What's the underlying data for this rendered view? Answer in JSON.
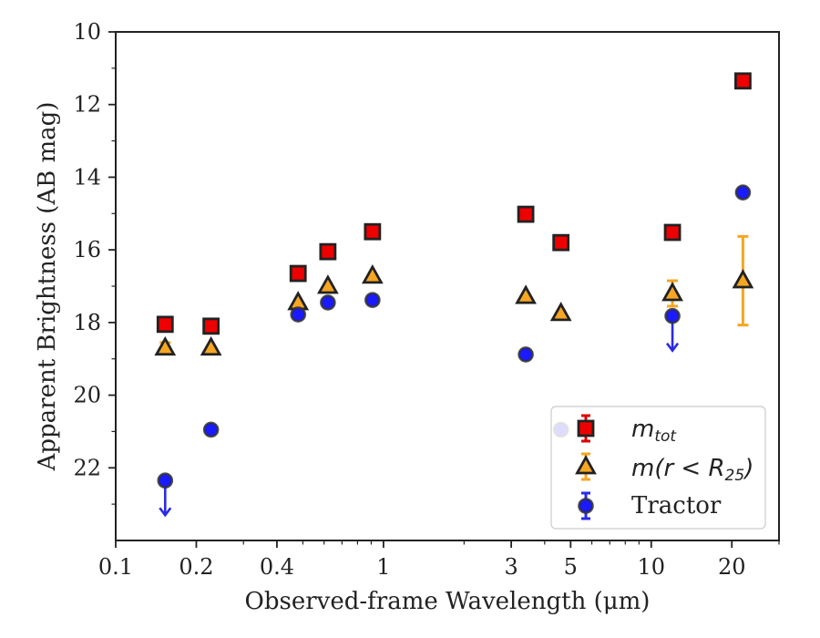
{
  "chart_data": {
    "type": "scatter",
    "xlabel": "Observed-frame Wavelength (μm)",
    "ylabel": "Apparent Brightness (AB mag)",
    "x_scale": "log",
    "xlim": [
      0.1,
      30
    ],
    "ylim": [
      24,
      10
    ],
    "y_inverted": true,
    "grid": false,
    "legend_position": "lower-right",
    "x_ticks": [
      {
        "value": 0.1,
        "label": "0.1"
      },
      {
        "value": 0.2,
        "label": "0.2"
      },
      {
        "value": 0.4,
        "label": "0.4"
      },
      {
        "value": 1,
        "label": "1"
      },
      {
        "value": 3,
        "label": "3"
      },
      {
        "value": 5,
        "label": "5"
      },
      {
        "value": 10,
        "label": "10"
      },
      {
        "value": 20,
        "label": "20"
      }
    ],
    "y_ticks": [
      {
        "value": 10,
        "label": "10"
      },
      {
        "value": 12,
        "label": "12"
      },
      {
        "value": 14,
        "label": "14"
      },
      {
        "value": 16,
        "label": "16"
      },
      {
        "value": 18,
        "label": "18"
      },
      {
        "value": 20,
        "label": "20"
      },
      {
        "value": 22,
        "label": "22"
      }
    ],
    "series": [
      {
        "name": "m_tot",
        "legend_main": "m",
        "legend_sub": "tot",
        "marker": "square",
        "fill": "#ee0000",
        "edge": "#222222",
        "errcolor": "#dd0000",
        "points": [
          {
            "x": 0.153,
            "y": 18.05
          },
          {
            "x": 0.227,
            "y": 18.1
          },
          {
            "x": 0.48,
            "y": 16.65
          },
          {
            "x": 0.62,
            "y": 16.05
          },
          {
            "x": 0.91,
            "y": 15.5
          },
          {
            "x": 3.4,
            "y": 15.02
          },
          {
            "x": 4.6,
            "y": 15.8
          },
          {
            "x": 12.0,
            "y": 15.52
          },
          {
            "x": 22.0,
            "y": 11.35
          }
        ]
      },
      {
        "name": "m(r < R_25)",
        "legend_main": "m(r < R",
        "legend_sub": "25",
        "legend_tail": ")",
        "marker": "triangle",
        "fill": "#f5a623",
        "edge": "#222222",
        "errcolor": "#f5a623",
        "points": [
          {
            "x": 0.153,
            "y": 18.7,
            "err": 0.15
          },
          {
            "x": 0.227,
            "y": 18.7
          },
          {
            "x": 0.48,
            "y": 17.45
          },
          {
            "x": 0.62,
            "y": 17.0
          },
          {
            "x": 0.91,
            "y": 16.72
          },
          {
            "x": 3.4,
            "y": 17.28
          },
          {
            "x": 4.6,
            "y": 17.75
          },
          {
            "x": 12.0,
            "y": 17.2,
            "err": 0.35
          },
          {
            "x": 22.0,
            "y": 16.85,
            "err": 1.22
          }
        ]
      },
      {
        "name": "Tractor",
        "marker": "circle",
        "fill": "#1a1aff",
        "edge": "#333333",
        "errcolor": "#2a2ae8",
        "points": [
          {
            "x": 0.153,
            "y": 22.35,
            "upper_limit": true
          },
          {
            "x": 0.227,
            "y": 20.95
          },
          {
            "x": 0.48,
            "y": 17.78
          },
          {
            "x": 0.62,
            "y": 17.45
          },
          {
            "x": 0.91,
            "y": 17.38
          },
          {
            "x": 3.4,
            "y": 18.88
          },
          {
            "x": 4.6,
            "y": 20.95
          },
          {
            "x": 12.0,
            "y": 17.82,
            "upper_limit": true
          },
          {
            "x": 22.0,
            "y": 14.42
          }
        ]
      }
    ]
  }
}
